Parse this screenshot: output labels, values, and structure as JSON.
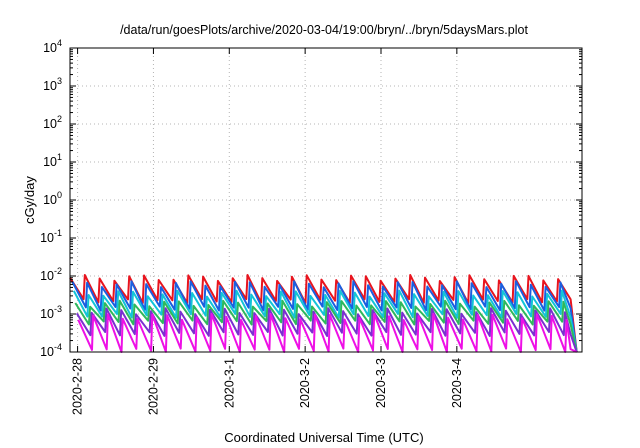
{
  "chart_data": {
    "type": "line",
    "title": "/data/run/goesPlots/archive/2020-03-04/19:00/bryn/../bryn/5daysMars.plot",
    "xlabel": "Coordinated Universal Time (UTC)",
    "ylabel": "cGy/day",
    "yscale": "log",
    "ylim": [
      0.0001,
      10000
    ],
    "xlim_days": [
      -0.1,
      6.65
    ],
    "grid": true,
    "y_ticks": [
      {
        "value": 0.0001,
        "base": "10",
        "exp": "-4"
      },
      {
        "value": 0.001,
        "base": "10",
        "exp": "-3"
      },
      {
        "value": 0.01,
        "base": "10",
        "exp": "-2"
      },
      {
        "value": 0.1,
        "base": "10",
        "exp": "-1"
      },
      {
        "value": 1,
        "base": "10",
        "exp": "0"
      },
      {
        "value": 10,
        "base": "10",
        "exp": "1"
      },
      {
        "value": 100,
        "base": "10",
        "exp": "2"
      },
      {
        "value": 1000,
        "base": "10",
        "exp": "3"
      },
      {
        "value": 10000,
        "base": "10",
        "exp": "4"
      }
    ],
    "x_ticks": [
      {
        "label": "2020-2-28",
        "day": 0
      },
      {
        "label": "2020-2-29",
        "day": 1
      },
      {
        "label": "2020-3-1",
        "day": 2
      },
      {
        "label": "2020-3-2",
        "day": 3
      },
      {
        "label": "2020-3-3",
        "day": 4
      },
      {
        "label": "2020-3-4",
        "day": 5
      }
    ],
    "series": [
      {
        "color": "#e8141e",
        "peak": 0.009,
        "trough": 0.0022,
        "phase": 0.0
      },
      {
        "color": "#1a5fe0",
        "peak": 0.0062,
        "trough": 0.0014,
        "phase": 0.03
      },
      {
        "color": "#12c4d8",
        "peak": 0.0035,
        "trough": 0.0009,
        "phase": 0.05
      },
      {
        "color": "#2eb85c",
        "peak": 0.0019,
        "trough": 0.0006,
        "phase": 0.07
      },
      {
        "color": "#7a2fd0",
        "peak": 0.0012,
        "trough": 0.0003,
        "phase": 0.09
      },
      {
        "color": "#ee10e6",
        "peak": 0.00085,
        "trough": 0.00011,
        "phase": 0.11
      }
    ],
    "cycle_days": 0.195,
    "end_day": 6.5
  }
}
